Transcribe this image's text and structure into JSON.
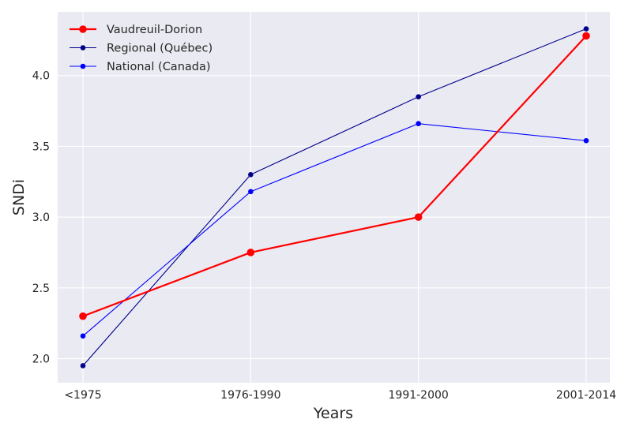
{
  "chart_data": {
    "type": "line",
    "categories": [
      "<1975",
      "1976-1990",
      "1991-2000",
      "2001-2014"
    ],
    "xlabel": "Years",
    "ylabel": "SNDi",
    "ylim": [
      1.83,
      4.45
    ],
    "yticks": [
      2.0,
      2.5,
      3.0,
      3.5,
      4.0
    ],
    "ytick_labels": [
      "2.0",
      "2.5",
      "3.0",
      "3.5",
      "4.0"
    ],
    "grid": true,
    "background": "#eaeaf2",
    "legend_position": "top-left",
    "series": [
      {
        "name": "Vaudreuil-Dorion",
        "values": [
          2.3,
          2.75,
          3.0,
          4.28
        ],
        "color": "#ff0000",
        "emphasis": true
      },
      {
        "name": "Regional (Québec)",
        "values": [
          1.95,
          3.3,
          3.85,
          4.33
        ],
        "color": "#00008b",
        "emphasis": false
      },
      {
        "name": "National (Canada)",
        "values": [
          2.16,
          3.18,
          3.66,
          3.54
        ],
        "color": "#0000ff",
        "emphasis": false
      }
    ]
  }
}
